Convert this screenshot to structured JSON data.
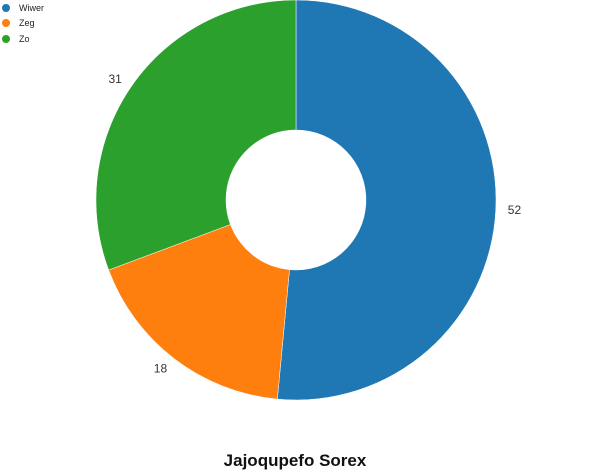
{
  "chart_data": {
    "type": "pie",
    "title": "Jajoqupefo Sorex",
    "donut": true,
    "legend_position": "top-left",
    "categories": [
      "Wiwer",
      "Zeg",
      "Zo"
    ],
    "values": [
      52,
      18,
      31
    ],
    "colors": [
      "#1f77b4",
      "#ff7f0e",
      "#2ca02c"
    ],
    "data_labels": [
      "52",
      "18",
      "31"
    ]
  }
}
